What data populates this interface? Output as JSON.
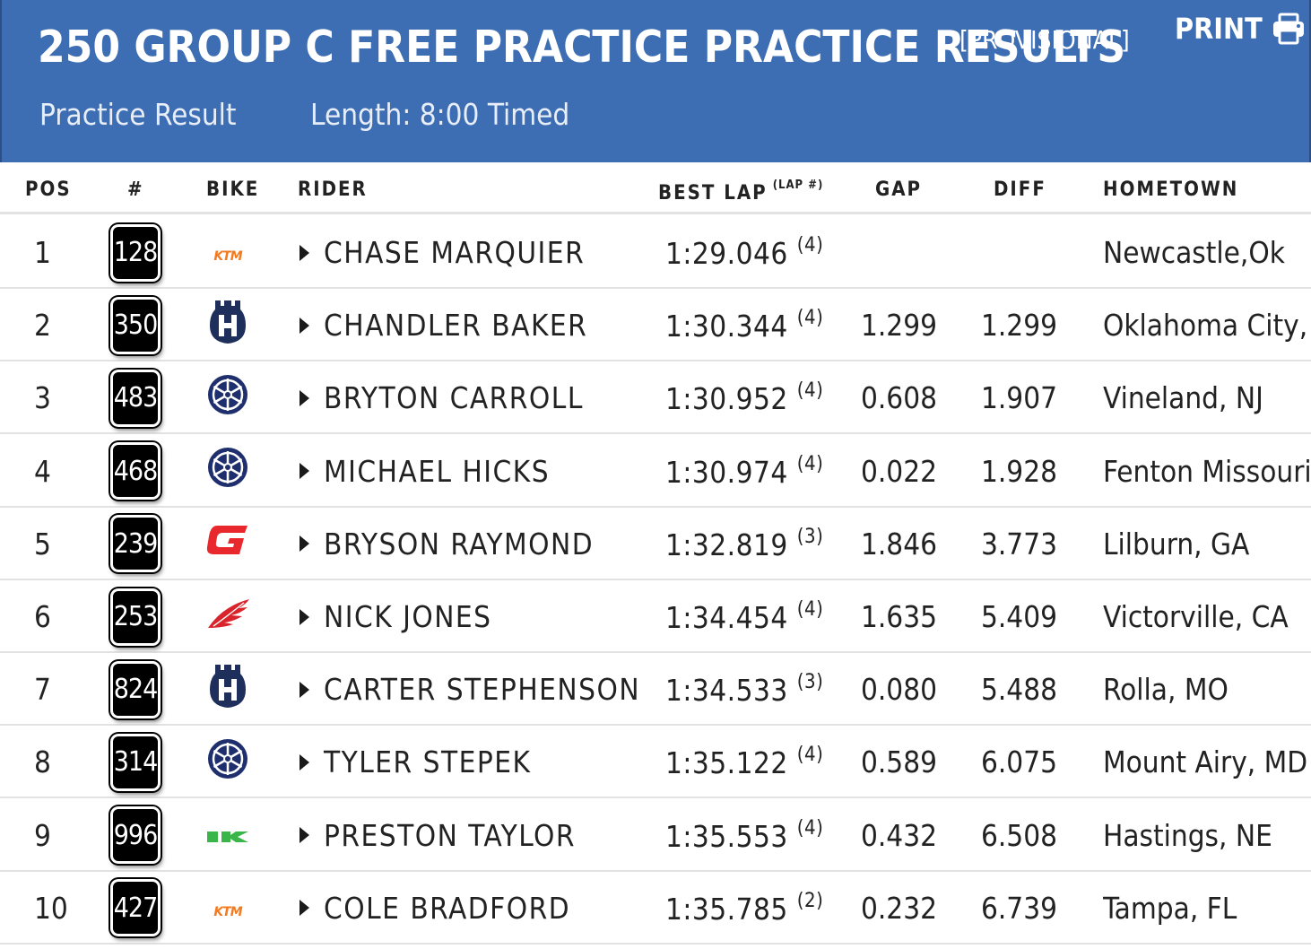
{
  "header": {
    "title": "250 GROUP C FREE PRACTICE PRACTICE RESULTS",
    "status": "[PROVISIONAL]",
    "print_label": "PRINT",
    "print_icon": "printer-icon",
    "result_type": "Practice Result",
    "length": "Length: 8:00 Timed"
  },
  "columns": {
    "pos": "POS",
    "num": "#",
    "bike": "BIKE",
    "rider": "RIDER",
    "best_lap": "BEST LAP",
    "best_lap_sub": "(LAP #)",
    "gap": "GAP",
    "diff": "DIFF",
    "hometown": "HOMETOWN"
  },
  "colors": {
    "header_bg": "#3d6db3",
    "ktm": "#f47a20",
    "husqvarna": "#1f2f5c",
    "yamaha": "#1f2f6e",
    "gasgas": "#e8282c",
    "honda": "#d9242b",
    "kawasaki": "#3ab54a"
  },
  "rows": [
    {
      "pos": "1",
      "num": "128",
      "bike": "ktm",
      "rider": "CHASE MARQUIER",
      "best": "1:29.046",
      "lap": "(4)",
      "gap": "",
      "diff": "",
      "hometown": "Newcastle,Ok"
    },
    {
      "pos": "2",
      "num": "350",
      "bike": "husqvarna",
      "rider": "CHANDLER BAKER",
      "best": "1:30.344",
      "lap": "(4)",
      "gap": "1.299",
      "diff": "1.299",
      "hometown": "Oklahoma City, O"
    },
    {
      "pos": "3",
      "num": "483",
      "bike": "yamaha",
      "rider": "BRYTON CARROLL",
      "best": "1:30.952",
      "lap": "(4)",
      "gap": "0.608",
      "diff": "1.907",
      "hometown": "Vineland, NJ"
    },
    {
      "pos": "4",
      "num": "468",
      "bike": "yamaha",
      "rider": "MICHAEL HICKS",
      "best": "1:30.974",
      "lap": "(4)",
      "gap": "0.022",
      "diff": "1.928",
      "hometown": "Fenton Missouri"
    },
    {
      "pos": "5",
      "num": "239",
      "bike": "gasgas",
      "rider": "BRYSON RAYMOND",
      "best": "1:32.819",
      "lap": "(3)",
      "gap": "1.846",
      "diff": "3.773",
      "hometown": "Lilburn, GA"
    },
    {
      "pos": "6",
      "num": "253",
      "bike": "honda",
      "rider": "NICK JONES",
      "best": "1:34.454",
      "lap": "(4)",
      "gap": "1.635",
      "diff": "5.409",
      "hometown": "Victorville, CA"
    },
    {
      "pos": "7",
      "num": "824",
      "bike": "husqvarna",
      "rider": "CARTER STEPHENSON",
      "best": "1:34.533",
      "lap": "(3)",
      "gap": "0.080",
      "diff": "5.488",
      "hometown": "Rolla, MO"
    },
    {
      "pos": "8",
      "num": "314",
      "bike": "yamaha",
      "rider": "TYLER STEPEK",
      "best": "1:35.122",
      "lap": "(4)",
      "gap": "0.589",
      "diff": "6.075",
      "hometown": "Mount Airy, MD"
    },
    {
      "pos": "9",
      "num": "996",
      "bike": "kawasaki",
      "rider": "PRESTON TAYLOR",
      "best": "1:35.553",
      "lap": "(4)",
      "gap": "0.432",
      "diff": "6.508",
      "hometown": "Hastings, NE"
    },
    {
      "pos": "10",
      "num": "427",
      "bike": "ktm",
      "rider": "COLE BRADFORD",
      "best": "1:35.785",
      "lap": "(2)",
      "gap": "0.232",
      "diff": "6.739",
      "hometown": "Tampa, FL"
    }
  ]
}
